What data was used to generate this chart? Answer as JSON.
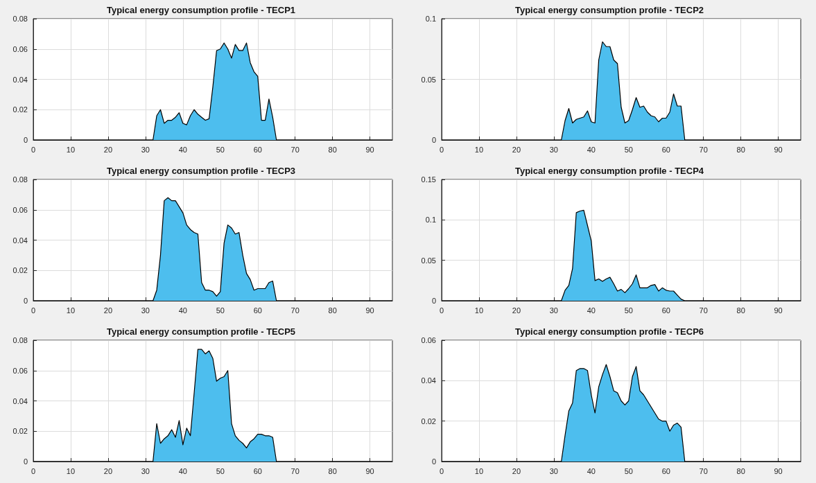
{
  "chart_data": [
    {
      "type": "area",
      "title": "Typical energy consumption profile - TECP1",
      "color": "#4dbeee",
      "grid": true,
      "xlim": [
        0,
        96
      ],
      "xticks": [
        0,
        10,
        20,
        30,
        40,
        50,
        60,
        70,
        80,
        90
      ],
      "ylim": [
        0,
        0.08
      ],
      "yticks": [
        0,
        0.02,
        0.04,
        0.06,
        0.08
      ],
      "x": [
        0,
        32,
        33,
        34,
        35,
        36,
        37,
        38,
        39,
        40,
        41,
        42,
        43,
        44,
        45,
        46,
        47,
        48,
        49,
        50,
        51,
        52,
        53,
        54,
        55,
        56,
        57,
        58,
        59,
        60,
        61,
        62,
        63,
        64,
        65,
        96
      ],
      "values": [
        0,
        0,
        0.016,
        0.02,
        0.011,
        0.013,
        0.013,
        0.015,
        0.018,
        0.011,
        0.01,
        0.016,
        0.02,
        0.017,
        0.015,
        0.013,
        0.014,
        0.035,
        0.059,
        0.06,
        0.064,
        0.06,
        0.054,
        0.063,
        0.059,
        0.059,
        0.064,
        0.051,
        0.045,
        0.042,
        0.013,
        0.013,
        0.027,
        0.015,
        0,
        0
      ]
    },
    {
      "type": "area",
      "title": "Typical energy consumption profile - TECP2",
      "color": "#4dbeee",
      "grid": true,
      "xlim": [
        0,
        96
      ],
      "xticks": [
        0,
        10,
        20,
        30,
        40,
        50,
        60,
        70,
        80,
        90
      ],
      "ylim": [
        0,
        0.1
      ],
      "yticks": [
        0,
        0.05,
        0.1
      ],
      "x": [
        0,
        32,
        33,
        34,
        35,
        36,
        37,
        38,
        39,
        40,
        41,
        42,
        43,
        44,
        45,
        46,
        47,
        48,
        49,
        50,
        51,
        52,
        53,
        54,
        55,
        56,
        57,
        58,
        59,
        60,
        61,
        62,
        63,
        64,
        65,
        96
      ],
      "values": [
        0,
        0,
        0.016,
        0.026,
        0.014,
        0.017,
        0.018,
        0.019,
        0.024,
        0.015,
        0.014,
        0.066,
        0.081,
        0.077,
        0.077,
        0.066,
        0.063,
        0.027,
        0.014,
        0.016,
        0.025,
        0.035,
        0.027,
        0.028,
        0.023,
        0.02,
        0.019,
        0.015,
        0.018,
        0.018,
        0.023,
        0.038,
        0.028,
        0.028,
        0,
        0
      ]
    },
    {
      "type": "area",
      "title": "Typical energy consumption profile - TECP3",
      "color": "#4dbeee",
      "grid": true,
      "xlim": [
        0,
        96
      ],
      "xticks": [
        0,
        10,
        20,
        30,
        40,
        50,
        60,
        70,
        80,
        90
      ],
      "ylim": [
        0,
        0.08
      ],
      "yticks": [
        0,
        0.02,
        0.04,
        0.06,
        0.08
      ],
      "x": [
        0,
        32,
        33,
        34,
        35,
        36,
        37,
        38,
        39,
        40,
        41,
        42,
        43,
        44,
        45,
        46,
        47,
        48,
        49,
        50,
        51,
        52,
        53,
        54,
        55,
        56,
        57,
        58,
        59,
        60,
        61,
        62,
        63,
        64,
        65,
        96
      ],
      "values": [
        0,
        0,
        0.007,
        0.03,
        0.066,
        0.068,
        0.066,
        0.066,
        0.062,
        0.058,
        0.05,
        0.047,
        0.045,
        0.044,
        0.012,
        0.007,
        0.007,
        0.006,
        0.003,
        0.006,
        0.038,
        0.05,
        0.048,
        0.044,
        0.045,
        0.03,
        0.018,
        0.014,
        0.007,
        0.008,
        0.008,
        0.008,
        0.012,
        0.013,
        0,
        0
      ]
    },
    {
      "type": "area",
      "title": "Typical energy consumption profile - TECP4",
      "color": "#4dbeee",
      "grid": true,
      "xlim": [
        0,
        96
      ],
      "xticks": [
        0,
        10,
        20,
        30,
        40,
        50,
        60,
        70,
        80,
        90
      ],
      "ylim": [
        0,
        0.15
      ],
      "yticks": [
        0,
        0.05,
        0.1,
        0.15
      ],
      "x": [
        0,
        32,
        33,
        34,
        35,
        36,
        37,
        38,
        39,
        40,
        41,
        42,
        43,
        44,
        45,
        46,
        47,
        48,
        49,
        50,
        51,
        52,
        53,
        54,
        55,
        56,
        57,
        58,
        59,
        60,
        61,
        62,
        63,
        64,
        65,
        96
      ],
      "values": [
        0,
        0,
        0.013,
        0.019,
        0.04,
        0.109,
        0.111,
        0.112,
        0.093,
        0.074,
        0.025,
        0.027,
        0.024,
        0.027,
        0.029,
        0.021,
        0.012,
        0.014,
        0.01,
        0.015,
        0.021,
        0.032,
        0.016,
        0.016,
        0.016,
        0.019,
        0.02,
        0.012,
        0.016,
        0.013,
        0.012,
        0.012,
        0.007,
        0.002,
        0,
        0
      ]
    },
    {
      "type": "area",
      "title": "Typical energy consumption profile - TECP5",
      "color": "#4dbeee",
      "grid": true,
      "xlim": [
        0,
        96
      ],
      "xticks": [
        0,
        10,
        20,
        30,
        40,
        50,
        60,
        70,
        80,
        90
      ],
      "ylim": [
        0,
        0.08
      ],
      "yticks": [
        0,
        0.02,
        0.04,
        0.06,
        0.08
      ],
      "x": [
        0,
        32,
        33,
        34,
        35,
        36,
        37,
        38,
        39,
        40,
        41,
        42,
        43,
        44,
        45,
        46,
        47,
        48,
        49,
        50,
        51,
        52,
        53,
        54,
        55,
        56,
        57,
        58,
        59,
        60,
        61,
        62,
        63,
        64,
        65,
        96
      ],
      "values": [
        0,
        0,
        0.025,
        0.012,
        0.015,
        0.017,
        0.021,
        0.016,
        0.027,
        0.011,
        0.022,
        0.017,
        0.045,
        0.074,
        0.074,
        0.071,
        0.073,
        0.068,
        0.053,
        0.055,
        0.056,
        0.06,
        0.025,
        0.017,
        0.014,
        0.012,
        0.009,
        0.013,
        0.015,
        0.018,
        0.018,
        0.017,
        0.017,
        0.016,
        0,
        0
      ]
    },
    {
      "type": "area",
      "title": "Typical energy consumption profile - TECP6",
      "color": "#4dbeee",
      "grid": true,
      "xlim": [
        0,
        96
      ],
      "xticks": [
        0,
        10,
        20,
        30,
        40,
        50,
        60,
        70,
        80,
        90
      ],
      "ylim": [
        0,
        0.06
      ],
      "yticks": [
        0,
        0.02,
        0.04,
        0.06
      ],
      "x": [
        0,
        32,
        33,
        34,
        35,
        36,
        37,
        38,
        39,
        40,
        41,
        42,
        43,
        44,
        45,
        46,
        47,
        48,
        49,
        50,
        51,
        52,
        53,
        54,
        55,
        56,
        57,
        58,
        59,
        60,
        61,
        62,
        63,
        64,
        65,
        96
      ],
      "values": [
        0,
        0,
        0.013,
        0.025,
        0.029,
        0.045,
        0.046,
        0.046,
        0.045,
        0.033,
        0.024,
        0.037,
        0.043,
        0.048,
        0.042,
        0.035,
        0.034,
        0.03,
        0.028,
        0.03,
        0.042,
        0.047,
        0.035,
        0.033,
        0.03,
        0.027,
        0.024,
        0.021,
        0.02,
        0.02,
        0.015,
        0.018,
        0.019,
        0.017,
        0,
        0
      ]
    }
  ]
}
